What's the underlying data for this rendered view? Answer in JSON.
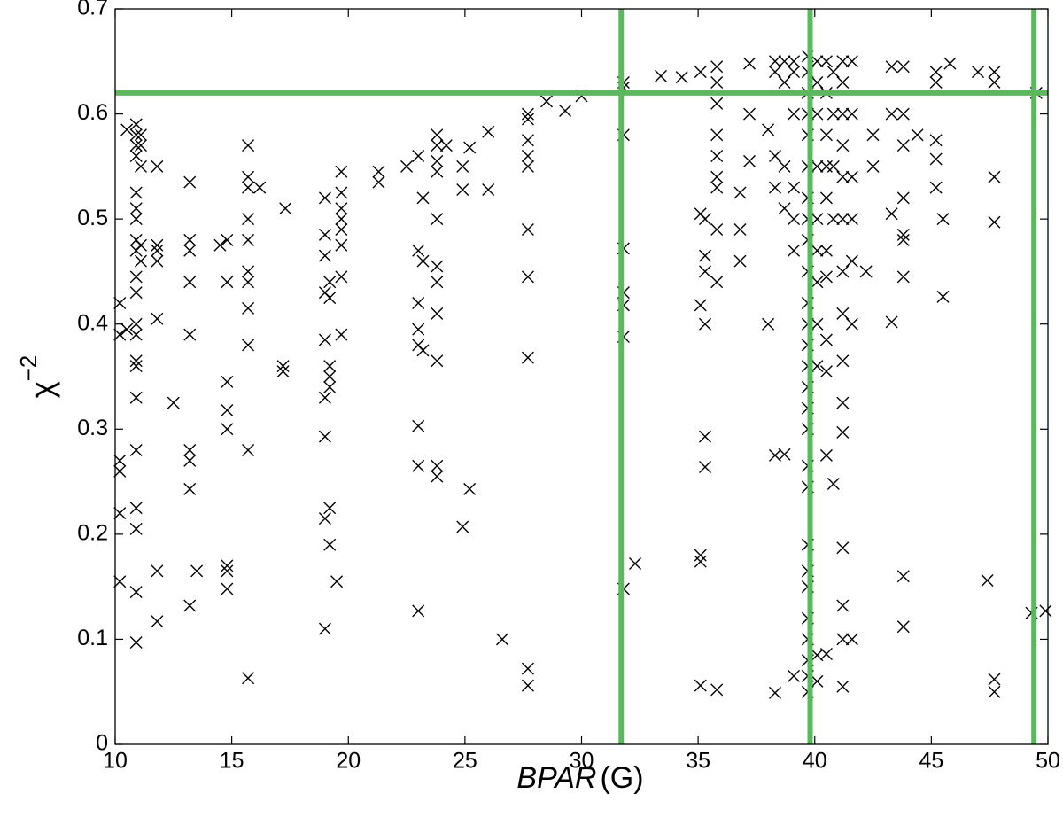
{
  "chart_data": {
    "type": "scatter",
    "xlabel": {
      "italic": "BPAR",
      "rest": "(G)"
    },
    "ylabel": {
      "base": "χ",
      "sup": "−2"
    },
    "xlim": [
      10,
      50
    ],
    "ylim": [
      0,
      0.7
    ],
    "xticks": [
      10,
      15,
      20,
      25,
      30,
      35,
      40,
      45,
      50
    ],
    "yticks": [
      0,
      0.1,
      0.2,
      0.3,
      0.4,
      0.5,
      0.6,
      0.7
    ],
    "vlines": [
      31.7,
      39.8,
      49.4
    ],
    "hline": 0.62,
    "line_color": "#5cb85c",
    "series": [
      {
        "color": "#000000",
        "x": [
          10.2,
          10.2,
          10.2,
          10.2,
          10.2,
          10.2,
          10.5,
          10.5,
          10.9,
          10.9,
          10.9,
          10.9,
          10.9,
          10.9,
          10.9,
          10.9,
          10.9,
          10.9,
          10.9,
          10.9,
          10.9,
          10.9,
          10.9,
          10.9,
          10.9,
          10.9,
          10.9,
          10.9,
          10.9,
          11.1,
          11.1,
          11.1,
          11.1,
          11.1,
          11.8,
          11.8,
          11.8,
          11.8,
          11.8,
          11.8,
          11.8,
          12.5,
          13.2,
          13.2,
          13.2,
          13.2,
          13.2,
          13.2,
          13.2,
          13.2,
          13.2,
          13.5,
          14.5,
          14.8,
          14.8,
          14.8,
          14.8,
          14.8,
          14.8,
          14.8,
          14.8,
          15.7,
          15.7,
          15.7,
          15.7,
          15.7,
          15.7,
          15.7,
          15.7,
          15.7,
          15.7,
          15.7,
          16.2,
          17.2,
          17.2,
          17.3,
          19,
          19,
          19,
          19,
          19,
          19,
          19,
          19,
          19,
          19.2,
          19.2,
          19.2,
          19.2,
          19.2,
          19.2,
          19.2,
          19.5,
          19.7,
          19.7,
          19.7,
          19.7,
          19.7,
          19.7,
          19.7,
          19.7,
          21.3,
          21.3,
          22.5,
          23,
          23,
          23,
          23,
          23,
          23,
          23,
          23,
          23.2,
          23.2,
          23.2,
          23.8,
          23.8,
          23.8,
          23.8,
          23.8,
          23.8,
          23.8,
          23.8,
          23.8,
          23.8,
          23.8,
          24.2,
          24.9,
          24.9,
          24.9,
          25.2,
          25.2,
          26,
          26,
          26.6,
          27.7,
          27.7,
          27.7,
          27.7,
          27.7,
          27.7,
          27.7,
          27.7,
          27.7,
          27.7,
          28.5,
          29.3,
          30,
          31.8,
          31.8,
          31.8,
          31.8,
          31.8,
          31.8,
          31.8,
          31.8,
          32.3,
          33.4,
          34.3,
          35.1,
          35.1,
          35.1,
          35.1,
          35.1,
          35.1,
          35.3,
          35.3,
          35.3,
          35.3,
          35.3,
          35.3,
          35.8,
          35.8,
          35.8,
          35.8,
          35.8,
          35.8,
          35.8,
          35.8,
          35.8,
          35.8,
          36.8,
          36.8,
          36.8,
          37.2,
          37.2,
          37.2,
          38,
          38,
          38.3,
          38.3,
          38.3,
          38.3,
          38.3,
          38.3,
          38.7,
          38.7,
          38.7,
          38.7,
          38.7,
          39.1,
          39.1,
          39.1,
          39.1,
          39.1,
          39.1,
          39.1,
          39.7,
          39.7,
          39.7,
          39.7,
          39.7,
          39.7,
          39.7,
          39.7,
          39.7,
          39.7,
          39.7,
          39.7,
          39.7,
          39.7,
          39.7,
          39.7,
          39.7,
          39.7,
          39.7,
          39.7,
          39.7,
          39.7,
          39.7,
          39.7,
          39.7,
          39.7,
          39.7,
          40.1,
          40.1,
          40.1,
          40.1,
          40.1,
          40.1,
          40.1,
          40.1,
          40.1,
          40.1,
          40.1,
          40.5,
          40.5,
          40.5,
          40.5,
          40.5,
          40.5,
          40.5,
          40.5,
          40.5,
          40.5,
          40.5,
          40.8,
          40.8,
          40.8,
          40.8,
          40.8,
          41.2,
          41.2,
          41.2,
          41.2,
          41.2,
          41.2,
          41.2,
          41.2,
          41.2,
          41.2,
          41.2,
          41.2,
          41.2,
          41.2,
          41.2,
          41.6,
          41.6,
          41.6,
          41.6,
          41.6,
          41.6,
          41.6,
          42.2,
          42.5,
          42.5,
          43.3,
          43.3,
          43.3,
          43.3,
          43.8,
          43.8,
          43.8,
          43.8,
          43.8,
          43.8,
          43.8,
          43.8,
          43.8,
          44.4,
          45.2,
          45.2,
          45.2,
          45.2,
          45.2,
          45.5,
          45.5,
          45.8,
          47,
          47.4,
          47.7,
          47.7,
          47.7,
          47.7,
          47.7,
          47.7,
          49.3,
          49.5,
          49.9
        ],
        "values": [
          0.42,
          0.39,
          0.27,
          0.26,
          0.22,
          0.155,
          0.395,
          0.585,
          0.59,
          0.58,
          0.57,
          0.56,
          0.525,
          0.51,
          0.5,
          0.48,
          0.47,
          0.445,
          0.43,
          0.4,
          0.39,
          0.365,
          0.36,
          0.33,
          0.28,
          0.225,
          0.205,
          0.145,
          0.097,
          0.58,
          0.57,
          0.55,
          0.475,
          0.46,
          0.55,
          0.475,
          0.47,
          0.46,
          0.405,
          0.165,
          0.117,
          0.325,
          0.535,
          0.48,
          0.47,
          0.44,
          0.39,
          0.28,
          0.27,
          0.243,
          0.132,
          0.165,
          0.475,
          0.48,
          0.44,
          0.345,
          0.318,
          0.3,
          0.17,
          0.165,
          0.148,
          0.57,
          0.54,
          0.53,
          0.5,
          0.48,
          0.45,
          0.44,
          0.415,
          0.38,
          0.28,
          0.063,
          0.53,
          0.36,
          0.355,
          0.51,
          0.52,
          0.485,
          0.465,
          0.43,
          0.385,
          0.33,
          0.293,
          0.215,
          0.11,
          0.44,
          0.425,
          0.36,
          0.35,
          0.34,
          0.225,
          0.19,
          0.155,
          0.545,
          0.525,
          0.51,
          0.5,
          0.49,
          0.475,
          0.445,
          0.39,
          0.545,
          0.535,
          0.55,
          0.56,
          0.47,
          0.42,
          0.395,
          0.38,
          0.303,
          0.265,
          0.127,
          0.52,
          0.46,
          0.375,
          0.58,
          0.57,
          0.555,
          0.545,
          0.5,
          0.455,
          0.44,
          0.41,
          0.365,
          0.265,
          0.255,
          0.57,
          0.55,
          0.528,
          0.207,
          0.568,
          0.243,
          0.583,
          0.528,
          0.1,
          0.6,
          0.595,
          0.575,
          0.56,
          0.55,
          0.49,
          0.445,
          0.368,
          0.072,
          0.056,
          0.612,
          0.603,
          0.617,
          0.63,
          0.625,
          0.58,
          0.472,
          0.43,
          0.418,
          0.388,
          0.148,
          0.172,
          0.636,
          0.635,
          0.64,
          0.505,
          0.418,
          0.18,
          0.174,
          0.056,
          0.5,
          0.465,
          0.45,
          0.4,
          0.293,
          0.264,
          0.645,
          0.63,
          0.61,
          0.58,
          0.56,
          0.54,
          0.53,
          0.49,
          0.44,
          0.052,
          0.525,
          0.49,
          0.46,
          0.648,
          0.6,
          0.555,
          0.585,
          0.4,
          0.65,
          0.64,
          0.56,
          0.53,
          0.275,
          0.049,
          0.65,
          0.63,
          0.55,
          0.51,
          0.276,
          0.65,
          0.64,
          0.6,
          0.53,
          0.5,
          0.47,
          0.065,
          0.655,
          0.64,
          0.62,
          0.6,
          0.58,
          0.55,
          0.52,
          0.5,
          0.48,
          0.45,
          0.42,
          0.4,
          0.38,
          0.36,
          0.34,
          0.32,
          0.3,
          0.265,
          0.245,
          0.19,
          0.165,
          0.15,
          0.12,
          0.1,
          0.08,
          0.065,
          0.05,
          0.65,
          0.63,
          0.6,
          0.55,
          0.5,
          0.47,
          0.44,
          0.4,
          0.36,
          0.085,
          0.06,
          0.65,
          0.62,
          0.58,
          0.55,
          0.52,
          0.47,
          0.445,
          0.385,
          0.355,
          0.275,
          0.086,
          0.64,
          0.6,
          0.55,
          0.5,
          0.248,
          0.65,
          0.63,
          0.6,
          0.57,
          0.54,
          0.5,
          0.45,
          0.41,
          0.365,
          0.325,
          0.297,
          0.187,
          0.132,
          0.1,
          0.055,
          0.65,
          0.6,
          0.54,
          0.5,
          0.46,
          0.4,
          0.1,
          0.45,
          0.58,
          0.55,
          0.645,
          0.6,
          0.505,
          0.402,
          0.645,
          0.6,
          0.57,
          0.52,
          0.485,
          0.48,
          0.445,
          0.16,
          0.112,
          0.58,
          0.64,
          0.63,
          0.575,
          0.557,
          0.53,
          0.5,
          0.426,
          0.648,
          0.64,
          0.156,
          0.64,
          0.63,
          0.54,
          0.497,
          0.062,
          0.05,
          0.125,
          0.62,
          0.127
        ]
      }
    ]
  }
}
